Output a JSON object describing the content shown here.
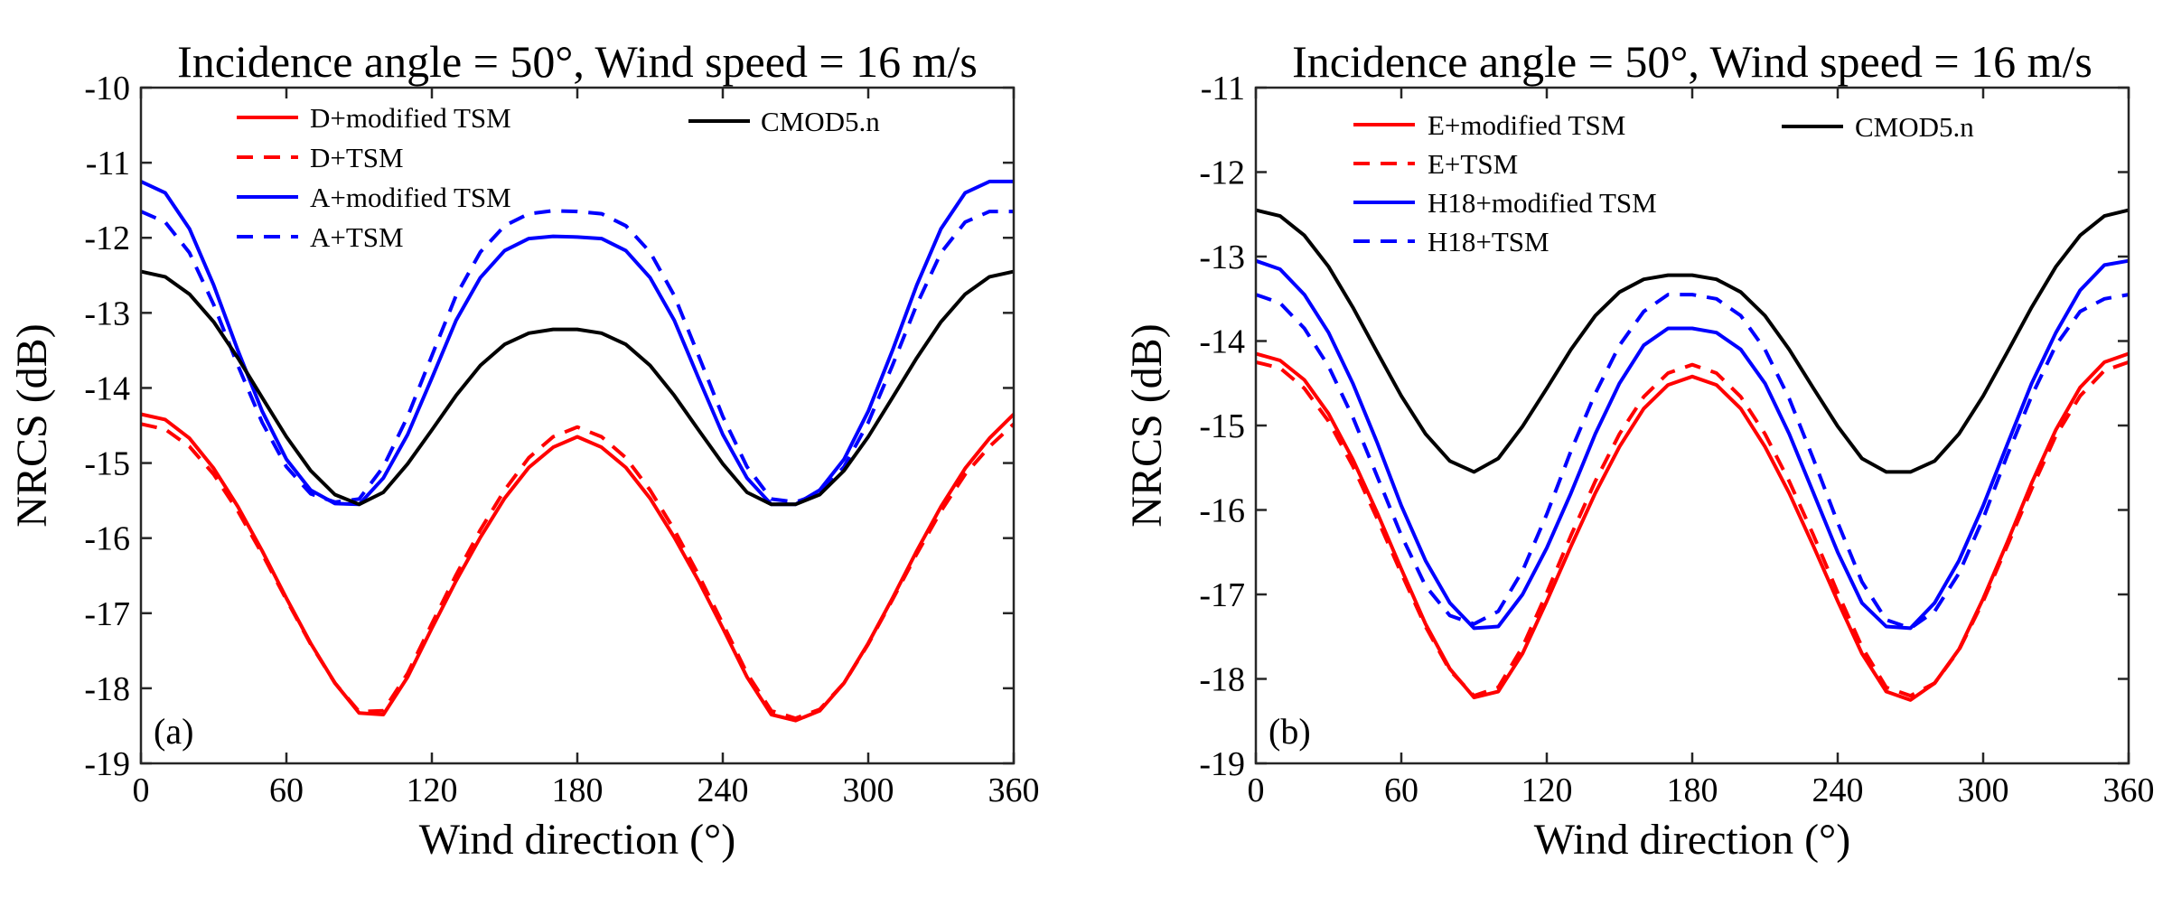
{
  "figure": {
    "panels": [
      "a",
      "b"
    ]
  },
  "chart_data": [
    {
      "type": "line",
      "panel_label": "(a)",
      "title": "Incidence angle = 50°, Wind speed = 16 m/s",
      "xlabel": "Wind direction (°)",
      "ylabel": "NRCS (dB)",
      "xlim": [
        0,
        360
      ],
      "ylim": [
        -19,
        -10
      ],
      "xticks": [
        0,
        60,
        120,
        180,
        240,
        300,
        360
      ],
      "yticks": [
        -19,
        -18,
        -17,
        -16,
        -15,
        -14,
        -13,
        -12,
        -11,
        -10
      ],
      "grid": false,
      "x": [
        0,
        10,
        20,
        30,
        40,
        50,
        60,
        70,
        80,
        90,
        100,
        110,
        120,
        130,
        140,
        150,
        160,
        170,
        180,
        190,
        200,
        210,
        220,
        230,
        240,
        250,
        260,
        270,
        280,
        290,
        300,
        310,
        320,
        330,
        340,
        350,
        360
      ],
      "series": [
        {
          "name": "D+modified TSM",
          "color": "#ff0000",
          "dash": "solid",
          "values": [
            -14.35,
            -14.42,
            -14.67,
            -15.07,
            -15.58,
            -16.17,
            -16.8,
            -17.4,
            -17.93,
            -18.33,
            -18.35,
            -17.85,
            -17.2,
            -16.57,
            -15.99,
            -15.47,
            -15.06,
            -14.79,
            -14.65,
            -14.79,
            -15.06,
            -15.47,
            -15.99,
            -16.57,
            -17.2,
            -17.85,
            -18.35,
            -18.43,
            -18.3,
            -17.93,
            -17.4,
            -16.8,
            -16.17,
            -15.58,
            -15.07,
            -14.67,
            -14.35
          ]
        },
        {
          "name": "D+TSM",
          "color": "#ff0000",
          "dash": "dashed",
          "values": [
            -14.48,
            -14.55,
            -14.78,
            -15.15,
            -15.64,
            -16.21,
            -16.82,
            -17.41,
            -17.93,
            -18.31,
            -18.3,
            -17.8,
            -17.14,
            -16.49,
            -15.89,
            -15.36,
            -14.93,
            -14.65,
            -14.52,
            -14.65,
            -14.93,
            -15.36,
            -15.89,
            -16.49,
            -17.14,
            -17.8,
            -18.3,
            -18.4,
            -18.28,
            -17.93,
            -17.41,
            -16.82,
            -16.21,
            -15.64,
            -15.15,
            -14.78,
            -14.48
          ]
        },
        {
          "name": "A+modified TSM",
          "color": "#0000ff",
          "dash": "solid",
          "values": [
            -11.25,
            -11.4,
            -11.88,
            -12.63,
            -13.5,
            -14.31,
            -14.95,
            -15.36,
            -15.54,
            -15.55,
            -15.2,
            -14.62,
            -13.87,
            -13.1,
            -12.53,
            -12.17,
            -12.01,
            -11.98,
            -11.99,
            -12.01,
            -12.17,
            -12.53,
            -13.1,
            -13.87,
            -14.62,
            -15.2,
            -15.55,
            -15.55,
            -15.36,
            -14.95,
            -14.31,
            -13.5,
            -12.63,
            -11.88,
            -11.4,
            -11.25,
            -11.25
          ]
        },
        {
          "name": "A+TSM",
          "color": "#0000ff",
          "dash": "dashed",
          "values": [
            -11.65,
            -11.79,
            -12.2,
            -12.89,
            -13.7,
            -14.46,
            -15.05,
            -15.41,
            -15.52,
            -15.48,
            -15.05,
            -14.38,
            -13.57,
            -12.77,
            -12.19,
            -11.84,
            -11.68,
            -11.64,
            -11.65,
            -11.68,
            -11.84,
            -12.19,
            -12.77,
            -13.57,
            -14.38,
            -15.05,
            -15.48,
            -15.52,
            -15.41,
            -15.05,
            -14.46,
            -13.7,
            -12.89,
            -12.2,
            -11.79,
            -11.65,
            -11.65
          ]
        },
        {
          "name": "CMOD5.n",
          "color": "#000000",
          "dash": "solid",
          "values": [
            -12.45,
            -12.52,
            -12.75,
            -13.12,
            -13.6,
            -14.13,
            -14.65,
            -15.1,
            -15.42,
            -15.55,
            -15.39,
            -15.01,
            -14.56,
            -14.1,
            -13.7,
            -13.42,
            -13.27,
            -13.22,
            -13.22,
            -13.27,
            -13.42,
            -13.7,
            -14.1,
            -14.56,
            -15.01,
            -15.39,
            -15.55,
            -15.55,
            -15.42,
            -15.1,
            -14.65,
            -14.13,
            -13.6,
            -13.12,
            -12.75,
            -12.52,
            -12.45
          ]
        }
      ]
    },
    {
      "type": "line",
      "panel_label": "(b)",
      "title": "Incidence angle = 50°, Wind speed = 16 m/s",
      "xlabel": "Wind direction (°)",
      "ylabel": "NRCS (dB)",
      "xlim": [
        0,
        360
      ],
      "ylim": [
        -19,
        -11
      ],
      "xticks": [
        0,
        60,
        120,
        180,
        240,
        300,
        360
      ],
      "yticks": [
        -19,
        -18,
        -17,
        -16,
        -15,
        -14,
        -13,
        -12,
        -11
      ],
      "grid": false,
      "x": [
        0,
        10,
        20,
        30,
        40,
        50,
        60,
        70,
        80,
        90,
        100,
        110,
        120,
        130,
        140,
        150,
        160,
        170,
        180,
        190,
        200,
        210,
        220,
        230,
        240,
        250,
        260,
        270,
        280,
        290,
        300,
        310,
        320,
        330,
        340,
        350,
        360
      ],
      "series": [
        {
          "name": "E+modified TSM",
          "color": "#ff0000",
          "dash": "solid",
          "values": [
            -14.15,
            -14.23,
            -14.46,
            -14.86,
            -15.4,
            -16.03,
            -16.7,
            -17.35,
            -17.88,
            -18.22,
            -18.15,
            -17.7,
            -17.08,
            -16.43,
            -15.8,
            -15.25,
            -14.8,
            -14.52,
            -14.42,
            -14.52,
            -14.8,
            -15.25,
            -15.8,
            -16.43,
            -17.08,
            -17.7,
            -18.15,
            -18.25,
            -18.05,
            -17.65,
            -17.05,
            -16.38,
            -15.68,
            -15.05,
            -14.55,
            -14.25,
            -14.15
          ]
        },
        {
          "name": "E+TSM",
          "color": "#ff0000",
          "dash": "dashed",
          "values": [
            -14.25,
            -14.32,
            -14.56,
            -14.95,
            -15.48,
            -16.1,
            -16.75,
            -17.38,
            -17.9,
            -18.2,
            -18.1,
            -17.62,
            -16.98,
            -16.3,
            -15.66,
            -15.1,
            -14.66,
            -14.38,
            -14.28,
            -14.38,
            -14.66,
            -15.1,
            -15.66,
            -16.3,
            -16.98,
            -17.62,
            -18.1,
            -18.2,
            -18.05,
            -17.66,
            -17.08,
            -16.42,
            -15.75,
            -15.12,
            -14.65,
            -14.35,
            -14.25
          ]
        },
        {
          "name": "H18+modified TSM",
          "color": "#0000ff",
          "dash": "solid",
          "values": [
            -13.05,
            -13.15,
            -13.45,
            -13.9,
            -14.5,
            -15.2,
            -15.95,
            -16.6,
            -17.1,
            -17.4,
            -17.38,
            -17.0,
            -16.45,
            -15.8,
            -15.1,
            -14.5,
            -14.05,
            -13.85,
            -13.85,
            -13.9,
            -14.1,
            -14.5,
            -15.1,
            -15.8,
            -16.5,
            -17.1,
            -17.38,
            -17.4,
            -17.1,
            -16.6,
            -15.95,
            -15.22,
            -14.5,
            -13.9,
            -13.4,
            -13.1,
            -13.05
          ]
        },
        {
          "name": "H18+TSM",
          "color": "#0000ff",
          "dash": "dashed",
          "values": [
            -13.45,
            -13.55,
            -13.85,
            -14.3,
            -14.9,
            -15.6,
            -16.3,
            -16.9,
            -17.25,
            -17.35,
            -17.2,
            -16.72,
            -16.05,
            -15.3,
            -14.62,
            -14.05,
            -13.65,
            -13.45,
            -13.45,
            -13.5,
            -13.7,
            -14.1,
            -14.68,
            -15.4,
            -16.15,
            -16.85,
            -17.3,
            -17.4,
            -17.2,
            -16.75,
            -16.1,
            -15.35,
            -14.65,
            -14.05,
            -13.65,
            -13.5,
            -13.45
          ]
        },
        {
          "name": "CMOD5.n",
          "color": "#000000",
          "dash": "solid",
          "values": [
            -12.45,
            -12.52,
            -12.75,
            -13.12,
            -13.6,
            -14.13,
            -14.65,
            -15.1,
            -15.42,
            -15.55,
            -15.39,
            -15.01,
            -14.56,
            -14.1,
            -13.7,
            -13.42,
            -13.27,
            -13.22,
            -13.22,
            -13.27,
            -13.42,
            -13.7,
            -14.1,
            -14.56,
            -15.01,
            -15.39,
            -15.55,
            -15.55,
            -15.42,
            -15.1,
            -14.65,
            -14.13,
            -13.6,
            -13.12,
            -12.75,
            -12.52,
            -12.45
          ]
        }
      ]
    }
  ]
}
